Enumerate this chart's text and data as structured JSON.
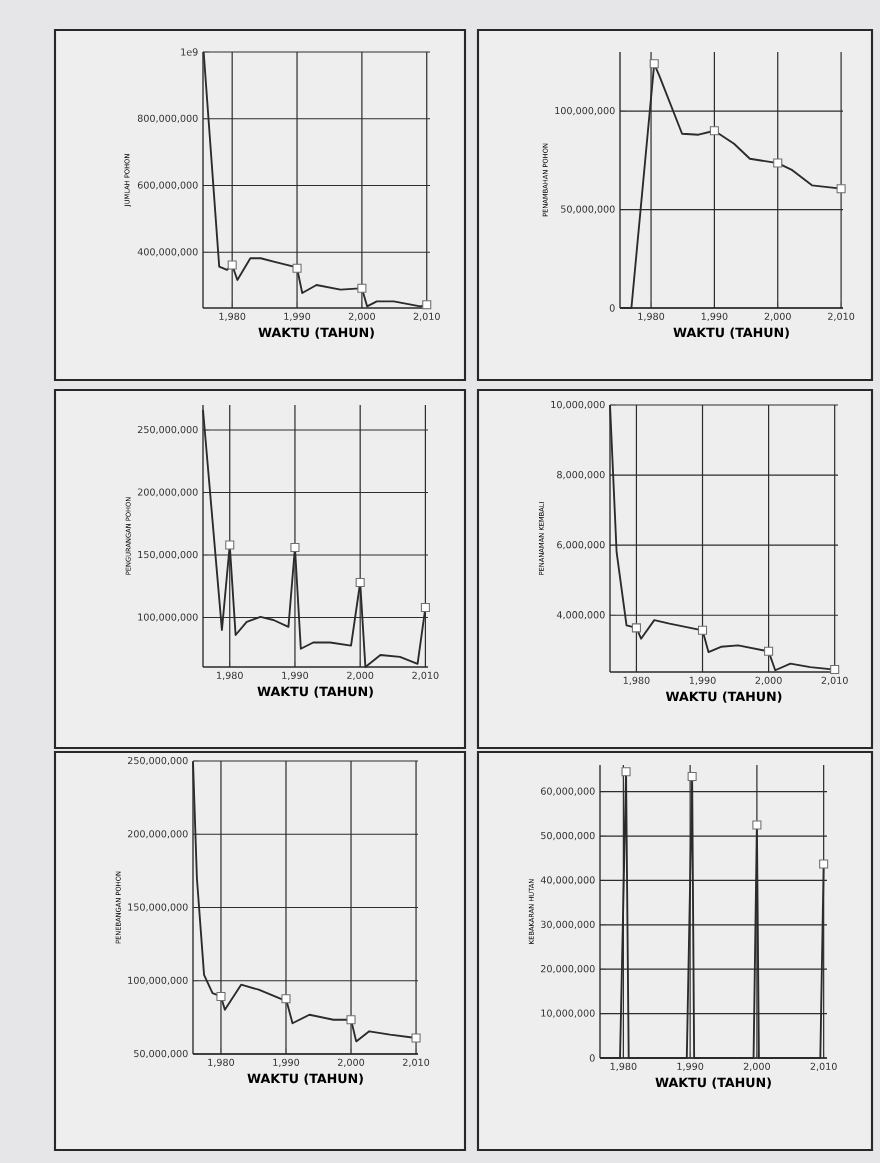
{
  "chart_data": [
    {
      "type": "line",
      "xlabel": "WAKTU (TAHUN)",
      "ylabel": "JUMLAH POHON",
      "xlim": [
        1975.5,
        2010.5
      ],
      "ylim": [
        233000000,
        1000000000
      ],
      "grid": true,
      "xticks": [
        {
          "value": 1980,
          "label": "1,980"
        },
        {
          "value": 1990,
          "label": "1,990"
        },
        {
          "value": 2000,
          "label": "2,000"
        },
        {
          "value": 2010,
          "label": "2,010"
        }
      ],
      "yticks": [
        {
          "value": 400000000,
          "label": "400,000,000"
        },
        {
          "value": 600000000,
          "label": "600,000,000"
        },
        {
          "value": 800000000,
          "label": "800,000,000"
        },
        {
          "value": 1000000000,
          "label": "1e9"
        }
      ],
      "series": [
        {
          "color": "#2b2b2b",
          "marker": "none",
          "x": [
            1975.6,
            1978,
            1979.2,
            1980,
            1980.8,
            1982.8,
            1984.4,
            1986.4,
            1989.5,
            1990,
            1990.8,
            1993,
            1996.7,
            1999.7,
            2000,
            2000.8,
            2002.3,
            2004.9,
            2009,
            2010
          ],
          "values": [
            1000000000,
            357000000,
            347000000,
            362000000,
            317000000,
            382000000,
            382000000,
            372000000,
            357000000,
            352000000,
            278000000,
            302000000,
            288000000,
            292000000,
            292000000,
            238000000,
            253000000,
            253000000,
            238000000,
            243000000
          ]
        },
        {
          "type": "scatter",
          "color": "#ffffff",
          "marker": "square",
          "x": [
            1980,
            1990,
            2000,
            2010
          ],
          "values": [
            362000000,
            352000000,
            292000000,
            243000000
          ]
        }
      ]
    },
    {
      "type": "line",
      "xlabel": "WAKTU (TAHUN)",
      "ylabel": "PENAMBAHAN POHON",
      "xlim": [
        1975.1,
        2010.3
      ],
      "ylim": [
        0,
        130000000
      ],
      "grid": true,
      "xticks": [
        {
          "value": 1980,
          "label": "1,980"
        },
        {
          "value": 1990,
          "label": "1,990"
        },
        {
          "value": 2000,
          "label": "2,000"
        },
        {
          "value": 2010,
          "label": "2,010"
        }
      ],
      "yticks": [
        0,
        {
          "value": 50000000,
          "label": "50,000,000"
        },
        {
          "value": 100000000,
          "label": "100,000,000"
        }
      ],
      "series": [
        {
          "color": "#2b2b2b",
          "marker": "none",
          "x": [
            1975.1,
            1976.9,
            1980.5,
            1981.3,
            1984.9,
            1987.5,
            1990,
            1993.1,
            1995.6,
            2000,
            2002.3,
            2005.4,
            2010
          ],
          "values": [
            0,
            0,
            124000000,
            118000000,
            88500000,
            88000000,
            90000000,
            83400000,
            75800000,
            73600000,
            70000000,
            62300000,
            60600000
          ]
        },
        {
          "type": "scatter",
          "color": "#ffffff",
          "marker": "square",
          "x": [
            1980.5,
            1990,
            2000,
            2010
          ],
          "values": [
            124000000,
            90000000,
            73600000,
            60600000
          ]
        }
      ]
    },
    {
      "type": "line",
      "xlabel": "WAKTU (TAHUN)",
      "ylabel": "PENGURANGAN POHON",
      "xlim": [
        1975.9,
        2010.4
      ],
      "ylim": [
        60400000,
        270000000
      ],
      "grid": true,
      "xticks": [
        {
          "value": 1980,
          "label": "1,980"
        },
        {
          "value": 1990,
          "label": "1,990"
        },
        {
          "value": 2000,
          "label": "2,000"
        },
        {
          "value": 2010,
          "label": "2,010"
        }
      ],
      "yticks": [
        {
          "value": 100000000,
          "label": "100,000,000"
        },
        {
          "value": 150000000,
          "label": "150,000,000"
        },
        {
          "value": 200000000,
          "label": "200,000,000"
        },
        {
          "value": 250000000,
          "label": "250,000,000"
        }
      ],
      "series": [
        {
          "color": "#2b2b2b",
          "marker": "none",
          "x": [
            1975.9,
            1978.8,
            1980,
            1980.9,
            1982.6,
            1984.7,
            1986.7,
            1989,
            1990,
            1990.9,
            1992.8,
            1995.4,
            1998.6,
            2000,
            2000.8,
            2003.1,
            2006.1,
            2008.8,
            2010
          ],
          "values": [
            266000000,
            90000000,
            158000000,
            86000000,
            96500000,
            100500000,
            98000000,
            92500000,
            156000000,
            75000000,
            80000000,
            80000000,
            77500000,
            128000000,
            60400000,
            70000000,
            68500000,
            63000000,
            108000000
          ]
        },
        {
          "type": "scatter",
          "color": "#ffffff",
          "marker": "square",
          "x": [
            1980,
            1990,
            2000,
            2010
          ],
          "values": [
            158000000,
            156000000,
            128000000,
            108000000
          ]
        }
      ]
    },
    {
      "type": "line",
      "xlabel": "WAKTU (TAHUN)",
      "ylabel": "PENANAMAN KEMBALI",
      "xlim": [
        1976,
        2010.5
      ],
      "ylim": [
        2380000,
        10000000
      ],
      "grid": true,
      "xticks": [
        {
          "value": 1980,
          "label": "1,980"
        },
        {
          "value": 1990,
          "label": "1,990"
        },
        {
          "value": 2000,
          "label": "2,000"
        },
        {
          "value": 2010,
          "label": "2,010"
        }
      ],
      "yticks": [
        {
          "value": 4000000,
          "label": "4,000,000"
        },
        {
          "value": 6000000,
          "label": "6,000,000"
        },
        {
          "value": 8000000,
          "label": "8,000,000"
        },
        {
          "value": 10000000,
          "label": "10,000,000"
        }
      ],
      "series": [
        {
          "color": "#2b2b2b",
          "marker": "none",
          "x": [
            1976,
            1977,
            1978.5,
            1980,
            1980.7,
            1982.7,
            1985,
            1990,
            1990.9,
            1992.8,
            1995.4,
            2000,
            2001,
            2003.3,
            2006.3,
            2010
          ],
          "values": [
            10000000,
            5800000,
            3710000,
            3640000,
            3330000,
            3860000,
            3760000,
            3570000,
            2950000,
            3100000,
            3140000,
            2970000,
            2430000,
            2620000,
            2520000,
            2450000
          ]
        },
        {
          "type": "scatter",
          "color": "#ffffff",
          "marker": "square",
          "x": [
            1980,
            1990,
            2000,
            2010
          ],
          "values": [
            3640000,
            3570000,
            2970000,
            2450000
          ]
        }
      ]
    },
    {
      "type": "line",
      "xlabel": "WAKTU (TAHUN)",
      "ylabel": "PENEBANGAN POHON",
      "xlim": [
        1975.7,
        2010.3
      ],
      "ylim": [
        50000000,
        250000000
      ],
      "grid": true,
      "xticks": [
        {
          "value": 1980,
          "label": "1,980"
        },
        {
          "value": 1990,
          "label": "1,990"
        },
        {
          "value": 2000,
          "label": "2,000"
        },
        {
          "value": 2010,
          "label": "2,010"
        }
      ],
      "yticks": [
        {
          "value": 50000000,
          "label": "50,000,000"
        },
        {
          "value": 100000000,
          "label": "100,000,000"
        },
        {
          "value": 150000000,
          "label": "150,000,000"
        },
        {
          "value": 200000000,
          "label": "200,000,000"
        },
        {
          "value": 250000000,
          "label": "250,000,000"
        }
      ],
      "series": [
        {
          "color": "#2b2b2b",
          "marker": "none",
          "x": [
            1975.7,
            1976.3,
            1977.4,
            1978.7,
            1980,
            1980.6,
            1983.1,
            1985.8,
            1989.6,
            1990,
            1991,
            1993.6,
            1997.3,
            2000,
            2000.8,
            2002.8,
            2006,
            2010
          ],
          "values": [
            249500000,
            170000000,
            104000000,
            91600000,
            89300000,
            80200000,
            97300000,
            93900000,
            87000000,
            87700000,
            71000000,
            76800000,
            73400000,
            73400000,
            58600000,
            65500000,
            63200000,
            60900000
          ]
        },
        {
          "type": "scatter",
          "color": "#ffffff",
          "marker": "square",
          "x": [
            1980,
            1990,
            2000,
            2010
          ],
          "values": [
            89300000,
            87700000,
            73400000,
            60900000
          ]
        }
      ]
    },
    {
      "type": "line",
      "xlabel": "WAKTU (TAHUN)",
      "ylabel": "KEBAKARAN HUTAN",
      "xlim": [
        1976.5,
        2010.5
      ],
      "ylim": [
        0,
        66000000
      ],
      "grid": true,
      "xticks": [
        {
          "value": 1980,
          "label": "1,980"
        },
        {
          "value": 1990,
          "label": "1,990"
        },
        {
          "value": 2000,
          "label": "2,000"
        },
        {
          "value": 2010,
          "label": "2,010"
        }
      ],
      "yticks": [
        0,
        {
          "value": 10000000,
          "label": "10,000,000"
        },
        {
          "value": 20000000,
          "label": "20,000,000"
        },
        {
          "value": 30000000,
          "label": "30,000,000"
        },
        {
          "value": 40000000,
          "label": "40,000,000"
        },
        {
          "value": 50000000,
          "label": "50,000,000"
        },
        {
          "value": 60000000,
          "label": "60,000,000"
        }
      ],
      "series": [
        {
          "color": "#2b2b2b",
          "marker": "none",
          "x": [
            1976.5,
            1979.5,
            1980.4,
            1980.8,
            1989.5,
            1990.3,
            1990.6,
            1999.5,
            2000,
            2000.3,
            2009.5,
            2010
          ],
          "values": [
            0,
            0,
            64500000,
            0,
            0,
            63400000,
            0,
            0,
            52500000,
            0,
            0,
            43700000
          ]
        },
        {
          "type": "scatter",
          "color": "#ffffff",
          "marker": "square",
          "x": [
            1980.4,
            1990.3,
            2000,
            2010
          ],
          "values": [
            64500000,
            63400000,
            52500000,
            43700000
          ]
        }
      ]
    }
  ]
}
